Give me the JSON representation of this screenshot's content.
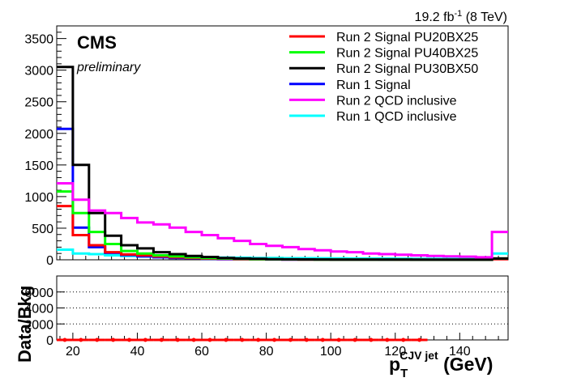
{
  "header": {
    "lumi_text": "19.2 fb",
    "lumi_sup": "-1",
    "energy_text": " (8 TeV)"
  },
  "labels": {
    "cms": "CMS",
    "preliminary": "preliminary",
    "ratio_ylabel": "Data/Bkg",
    "xlabel_main": "p",
    "xlabel_sub": "T",
    "xlabel_sup": "CJV jet",
    "xlabel_unit": " (GeV)"
  },
  "chart_data": [
    {
      "type": "line",
      "subtype": "step-histogram",
      "xlim": [
        15,
        155
      ],
      "ylim": [
        0,
        3700
      ],
      "yticks": [
        0,
        500,
        1000,
        1500,
        2000,
        2500,
        3000,
        3500
      ],
      "bin_edges": [
        15,
        20,
        25,
        30,
        35,
        40,
        45,
        50,
        55,
        60,
        65,
        70,
        75,
        80,
        85,
        90,
        95,
        100,
        105,
        110,
        115,
        120,
        125,
        130,
        135,
        140,
        145,
        150,
        155
      ],
      "legend": {
        "placement": "top-right"
      },
      "series": [
        {
          "name": "Run 2 Signal PU20BX25",
          "color": "#ff0000",
          "values": [
            850,
            390,
            230,
            120,
            85,
            70,
            55,
            40,
            30,
            20,
            15,
            10,
            8,
            6,
            5,
            4,
            3,
            3,
            2,
            2,
            2,
            1,
            1,
            1,
            1,
            1,
            1,
            10
          ]
        },
        {
          "name": "Run 2 Signal PU40BX25",
          "color": "#00ff00",
          "values": [
            1080,
            740,
            440,
            250,
            140,
            100,
            70,
            55,
            40,
            30,
            20,
            15,
            10,
            8,
            6,
            5,
            4,
            3,
            3,
            2,
            2,
            2,
            1,
            1,
            1,
            1,
            1,
            20
          ]
        },
        {
          "name": "Run 2 Signal PU30BX50",
          "color": "#000000",
          "values": [
            3050,
            1500,
            740,
            380,
            230,
            180,
            120,
            90,
            60,
            45,
            30,
            20,
            15,
            10,
            8,
            6,
            5,
            4,
            3,
            3,
            2,
            2,
            1,
            1,
            1,
            1,
            1,
            20
          ]
        },
        {
          "name": "Run 1 Signal",
          "color": "#0000ff",
          "values": [
            2070,
            510,
            200,
            110,
            75,
            55,
            40,
            30,
            22,
            15,
            10,
            8,
            6,
            5,
            4,
            3,
            3,
            2,
            2,
            2,
            1,
            1,
            1,
            1,
            1,
            1,
            1,
            15
          ]
        },
        {
          "name": "Run 2 QCD inclusive",
          "color": "#ff00ff",
          "values": [
            1210,
            950,
            780,
            740,
            660,
            590,
            560,
            510,
            440,
            390,
            340,
            300,
            250,
            220,
            200,
            170,
            150,
            130,
            120,
            100,
            90,
            80,
            70,
            60,
            55,
            50,
            40,
            440
          ]
        },
        {
          "name": "Run 1 QCD inclusive",
          "color": "#00ffff",
          "values": [
            160,
            100,
            90,
            70,
            60,
            55,
            50,
            45,
            40,
            38,
            35,
            33,
            30,
            28,
            26,
            25,
            24,
            22,
            21,
            20,
            19,
            18,
            17,
            16,
            15,
            14,
            14,
            100
          ]
        }
      ]
    },
    {
      "type": "line",
      "subtype": "ratio",
      "ylabel": "Data/Bkg",
      "xlim": [
        15,
        155
      ],
      "ylim": [
        0,
        8000
      ],
      "yticks": [
        0,
        2000,
        4000,
        6000
      ],
      "ytick_labels": [
        "0",
        "2000",
        "4000",
        "6000"
      ],
      "xticks": [
        20,
        40,
        60,
        80,
        100,
        120,
        140
      ],
      "grid": "horizontal-dotted",
      "series": [
        {
          "color": "#ff0000",
          "x": [
            17.5,
            22.5,
            27.5,
            32.5,
            37.5,
            42.5,
            47.5,
            52.5,
            57.5,
            62.5,
            67.5,
            72.5,
            77.5,
            82.5,
            87.5,
            92.5,
            97.5,
            102.5,
            107.5,
            112.5,
            117.5,
            122.5,
            127.5
          ],
          "values": [
            0,
            0,
            0,
            0,
            0,
            0,
            0,
            0,
            0,
            0,
            0,
            0,
            0,
            0,
            0,
            0,
            0,
            0,
            0,
            0,
            0,
            0,
            0
          ]
        }
      ]
    }
  ]
}
